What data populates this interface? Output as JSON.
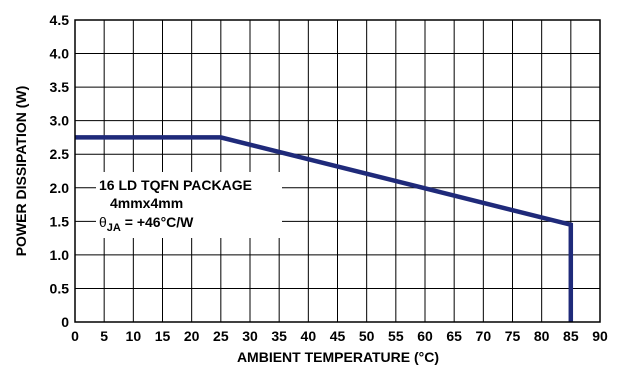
{
  "chart_data": {
    "type": "line",
    "title": "",
    "xlabel": "AMBIENT TEMPERATURE (°C)",
    "ylabel": "POWER DISSIPATION (W)",
    "xlim": [
      0,
      90
    ],
    "ylim": [
      0,
      4.5
    ],
    "x_ticks": [
      0,
      5,
      10,
      15,
      20,
      25,
      30,
      35,
      40,
      45,
      50,
      55,
      60,
      65,
      70,
      75,
      80,
      85,
      90
    ],
    "y_ticks": [
      0,
      0.5,
      1.0,
      1.5,
      2.0,
      2.5,
      3.0,
      3.5,
      4.0,
      4.5
    ],
    "x_tick_labels": [
      "0",
      "5",
      "10",
      "15",
      "20",
      "25",
      "30",
      "35",
      "40",
      "45",
      "50",
      "55",
      "60",
      "65",
      "70",
      "75",
      "80",
      "85",
      "90"
    ],
    "y_tick_labels": [
      "0",
      "0.5",
      "1.0",
      "1.5",
      "2.0",
      "2.5",
      "3.0",
      "3.5",
      "4.0",
      "4.5"
    ],
    "grid": true,
    "series": [
      {
        "color": "#1f2a7a",
        "points": [
          [
            0,
            2.75
          ],
          [
            25,
            2.75
          ],
          [
            85,
            1.45
          ],
          [
            85,
            0
          ]
        ]
      }
    ],
    "annotations": {
      "line1": "16 LD TQFN PACKAGE",
      "line2": "4mmx4mm",
      "line3_symbol": "θ",
      "line3_sub": "JA",
      "line3_rest": " = +46°C/W"
    }
  }
}
